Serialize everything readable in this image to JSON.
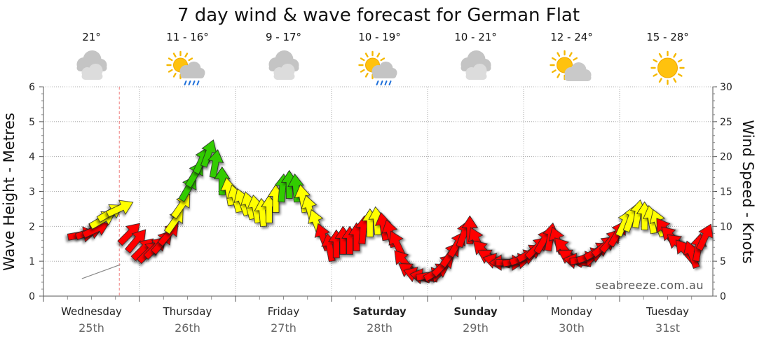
{
  "page": {
    "title": "7 day wind & wave forecast for German Flat",
    "watermark": "seabreeze.com.au"
  },
  "days": [
    {
      "name": "Wednesday",
      "date": "25th",
      "temp": "21°",
      "icon": "cloudy-icon",
      "bold": false
    },
    {
      "name": "Thursday",
      "date": "26th",
      "temp": "11 - 16°",
      "icon": "partly-sunny-rain-icon",
      "bold": false
    },
    {
      "name": "Friday",
      "date": "27th",
      "temp": "9 - 17°",
      "icon": "cloudy-icon",
      "bold": false
    },
    {
      "name": "Saturday",
      "date": "28th",
      "temp": "10 - 19°",
      "icon": "partly-sunny-rain-icon",
      "bold": true
    },
    {
      "name": "Sunday",
      "date": "29th",
      "temp": "10 - 21°",
      "icon": "cloudy-icon",
      "bold": true
    },
    {
      "name": "Monday",
      "date": "30th",
      "temp": "12 - 24°",
      "icon": "partly-sunny-icon",
      "bold": false
    },
    {
      "name": "Tuesday",
      "date": "31st",
      "temp": "15 - 28°",
      "icon": "sunny-icon",
      "bold": false
    }
  ],
  "chart_data": {
    "type": "line",
    "title": "7 day wind & wave forecast for German Flat",
    "ylabel_left": "Wave Height - Metres",
    "ylabel_right": "Wind Speed - Knots",
    "ylim_left": [
      0,
      6
    ],
    "ylim_right": [
      0,
      30
    ],
    "yticks_left": [
      "0",
      "1",
      "2",
      "3",
      "4",
      "5",
      "6"
    ],
    "yticks_right": [
      "0",
      "5",
      "10",
      "15",
      "20",
      "25",
      "30"
    ],
    "x_unit": "days from Wednesday 00:00",
    "x_range": [
      0,
      7
    ],
    "now_marker_x": 0.79,
    "grid": true,
    "wave_series": {
      "name": "Wave Height",
      "x": [
        0.4,
        0.8
      ],
      "values": [
        0.5,
        0.9
      ]
    },
    "wind_series": {
      "name": "Wind Speed",
      "color_bands": [
        {
          "max": 10,
          "color": "#ff0000"
        },
        {
          "max": 15,
          "color": "#ffff00"
        },
        {
          "max": 25,
          "color": "#33cc00"
        }
      ],
      "points": [
        {
          "x": 0.4,
          "speed": 8.8,
          "dir": 80
        },
        {
          "x": 0.48,
          "speed": 9.2,
          "dir": 70
        },
        {
          "x": 0.55,
          "speed": 9.6,
          "dir": 65
        },
        {
          "x": 0.62,
          "speed": 11.0,
          "dir": 60
        },
        {
          "x": 0.7,
          "speed": 12.0,
          "dir": 60
        },
        {
          "x": 0.8,
          "speed": 12.6,
          "dir": 65
        },
        {
          "x": 0.9,
          "speed": 9.0,
          "dir": 45
        },
        {
          "x": 0.97,
          "speed": 8.0,
          "dir": 40
        },
        {
          "x": 1.04,
          "speed": 6.8,
          "dir": 45
        },
        {
          "x": 1.1,
          "speed": 6.4,
          "dir": 45
        },
        {
          "x": 1.17,
          "speed": 7.0,
          "dir": 45
        },
        {
          "x": 1.24,
          "speed": 7.8,
          "dir": 40
        },
        {
          "x": 1.31,
          "speed": 9.0,
          "dir": 40
        },
        {
          "x": 1.37,
          "speed": 10.8,
          "dir": 35
        },
        {
          "x": 1.44,
          "speed": 13.0,
          "dir": 35
        },
        {
          "x": 1.51,
          "speed": 15.5,
          "dir": 30
        },
        {
          "x": 1.58,
          "speed": 17.5,
          "dir": 30
        },
        {
          "x": 1.65,
          "speed": 19.5,
          "dir": 25
        },
        {
          "x": 1.72,
          "speed": 20.5,
          "dir": 20
        },
        {
          "x": 1.79,
          "speed": 19.0,
          "dir": 10
        },
        {
          "x": 1.86,
          "speed": 16.5,
          "dir": 0
        },
        {
          "x": 1.93,
          "speed": 15.0,
          "dir": -10
        },
        {
          "x": 2.0,
          "speed": 14.0,
          "dir": -15
        },
        {
          "x": 2.07,
          "speed": 13.5,
          "dir": -20
        },
        {
          "x": 2.14,
          "speed": 13.0,
          "dir": -15
        },
        {
          "x": 2.21,
          "speed": 12.5,
          "dir": -10
        },
        {
          "x": 2.28,
          "speed": 12.0,
          "dir": -5
        },
        {
          "x": 2.35,
          "speed": 12.5,
          "dir": 0
        },
        {
          "x": 2.42,
          "speed": 14.0,
          "dir": 0
        },
        {
          "x": 2.49,
          "speed": 15.5,
          "dir": 5
        },
        {
          "x": 2.56,
          "speed": 16.0,
          "dir": 0
        },
        {
          "x": 2.63,
          "speed": 15.5,
          "dir": -5
        },
        {
          "x": 2.7,
          "speed": 14.0,
          "dir": -10
        },
        {
          "x": 2.77,
          "speed": 12.5,
          "dir": -15
        },
        {
          "x": 2.84,
          "speed": 10.5,
          "dir": -20
        },
        {
          "x": 2.91,
          "speed": 8.5,
          "dir": -20
        },
        {
          "x": 2.98,
          "speed": 7.0,
          "dir": -10
        },
        {
          "x": 3.05,
          "speed": 7.5,
          "dir": 0
        },
        {
          "x": 3.12,
          "speed": 8.0,
          "dir": 0
        },
        {
          "x": 3.19,
          "speed": 8.0,
          "dir": 0
        },
        {
          "x": 3.26,
          "speed": 8.5,
          "dir": 0
        },
        {
          "x": 3.33,
          "speed": 9.5,
          "dir": 5
        },
        {
          "x": 3.4,
          "speed": 10.5,
          "dir": 0
        },
        {
          "x": 3.47,
          "speed": 10.8,
          "dir": -5
        },
        {
          "x": 3.54,
          "speed": 10.0,
          "dir": -10
        },
        {
          "x": 3.61,
          "speed": 9.0,
          "dir": -15
        },
        {
          "x": 3.68,
          "speed": 7.5,
          "dir": -25
        },
        {
          "x": 3.75,
          "speed": 5.0,
          "dir": -40
        },
        {
          "x": 3.82,
          "speed": 3.5,
          "dir": -55
        },
        {
          "x": 3.89,
          "speed": 3.0,
          "dir": -70
        },
        {
          "x": 3.96,
          "speed": 2.8,
          "dir": -80
        },
        {
          "x": 4.03,
          "speed": 3.0,
          "dir": 80
        },
        {
          "x": 4.1,
          "speed": 3.5,
          "dir": 60
        },
        {
          "x": 4.17,
          "speed": 4.5,
          "dir": 45
        },
        {
          "x": 4.24,
          "speed": 6.0,
          "dir": 35
        },
        {
          "x": 4.31,
          "speed": 7.5,
          "dir": 30
        },
        {
          "x": 4.38,
          "speed": 9.0,
          "dir": 20
        },
        {
          "x": 4.44,
          "speed": 9.5,
          "dir": 0
        },
        {
          "x": 4.51,
          "speed": 8.0,
          "dir": -25
        },
        {
          "x": 4.58,
          "speed": 6.5,
          "dir": -45
        },
        {
          "x": 4.65,
          "speed": 5.5,
          "dir": -60
        },
        {
          "x": 4.72,
          "speed": 5.0,
          "dir": -75
        },
        {
          "x": 4.79,
          "speed": 4.8,
          "dir": -90
        },
        {
          "x": 4.86,
          "speed": 4.8,
          "dir": 90
        },
        {
          "x": 4.93,
          "speed": 5.0,
          "dir": 80
        },
        {
          "x": 5.0,
          "speed": 5.5,
          "dir": 70
        },
        {
          "x": 5.07,
          "speed": 6.2,
          "dir": 60
        },
        {
          "x": 5.14,
          "speed": 7.0,
          "dir": 45
        },
        {
          "x": 5.21,
          "speed": 8.0,
          "dir": 30
        },
        {
          "x": 5.28,
          "speed": 8.5,
          "dir": 10
        },
        {
          "x": 5.35,
          "speed": 8.0,
          "dir": -20
        },
        {
          "x": 5.42,
          "speed": 6.8,
          "dir": -40
        },
        {
          "x": 5.49,
          "speed": 5.5,
          "dir": -60
        },
        {
          "x": 5.56,
          "speed": 5.0,
          "dir": -80
        },
        {
          "x": 5.63,
          "speed": 5.3,
          "dir": 80
        },
        {
          "x": 5.7,
          "speed": 5.8,
          "dir": 70
        },
        {
          "x": 5.77,
          "speed": 6.5,
          "dir": 60
        },
        {
          "x": 5.84,
          "speed": 7.2,
          "dir": 50
        },
        {
          "x": 5.91,
          "speed": 8.0,
          "dir": 40
        },
        {
          "x": 5.98,
          "speed": 9.0,
          "dir": 30
        },
        {
          "x": 6.05,
          "speed": 10.5,
          "dir": 25
        },
        {
          "x": 6.12,
          "speed": 11.2,
          "dir": 20
        },
        {
          "x": 6.19,
          "speed": 11.8,
          "dir": 10
        },
        {
          "x": 6.26,
          "speed": 11.5,
          "dir": 0
        },
        {
          "x": 6.33,
          "speed": 11.0,
          "dir": -10
        },
        {
          "x": 6.4,
          "speed": 10.5,
          "dir": -20
        },
        {
          "x": 6.47,
          "speed": 9.5,
          "dir": -35
        },
        {
          "x": 6.54,
          "speed": 8.5,
          "dir": -45
        },
        {
          "x": 6.61,
          "speed": 7.5,
          "dir": -50
        },
        {
          "x": 6.68,
          "speed": 6.5,
          "dir": -40
        },
        {
          "x": 6.75,
          "speed": 6.0,
          "dir": -20
        },
        {
          "x": 6.82,
          "speed": 7.0,
          "dir": 10
        },
        {
          "x": 6.89,
          "speed": 8.5,
          "dir": 25
        }
      ]
    }
  }
}
